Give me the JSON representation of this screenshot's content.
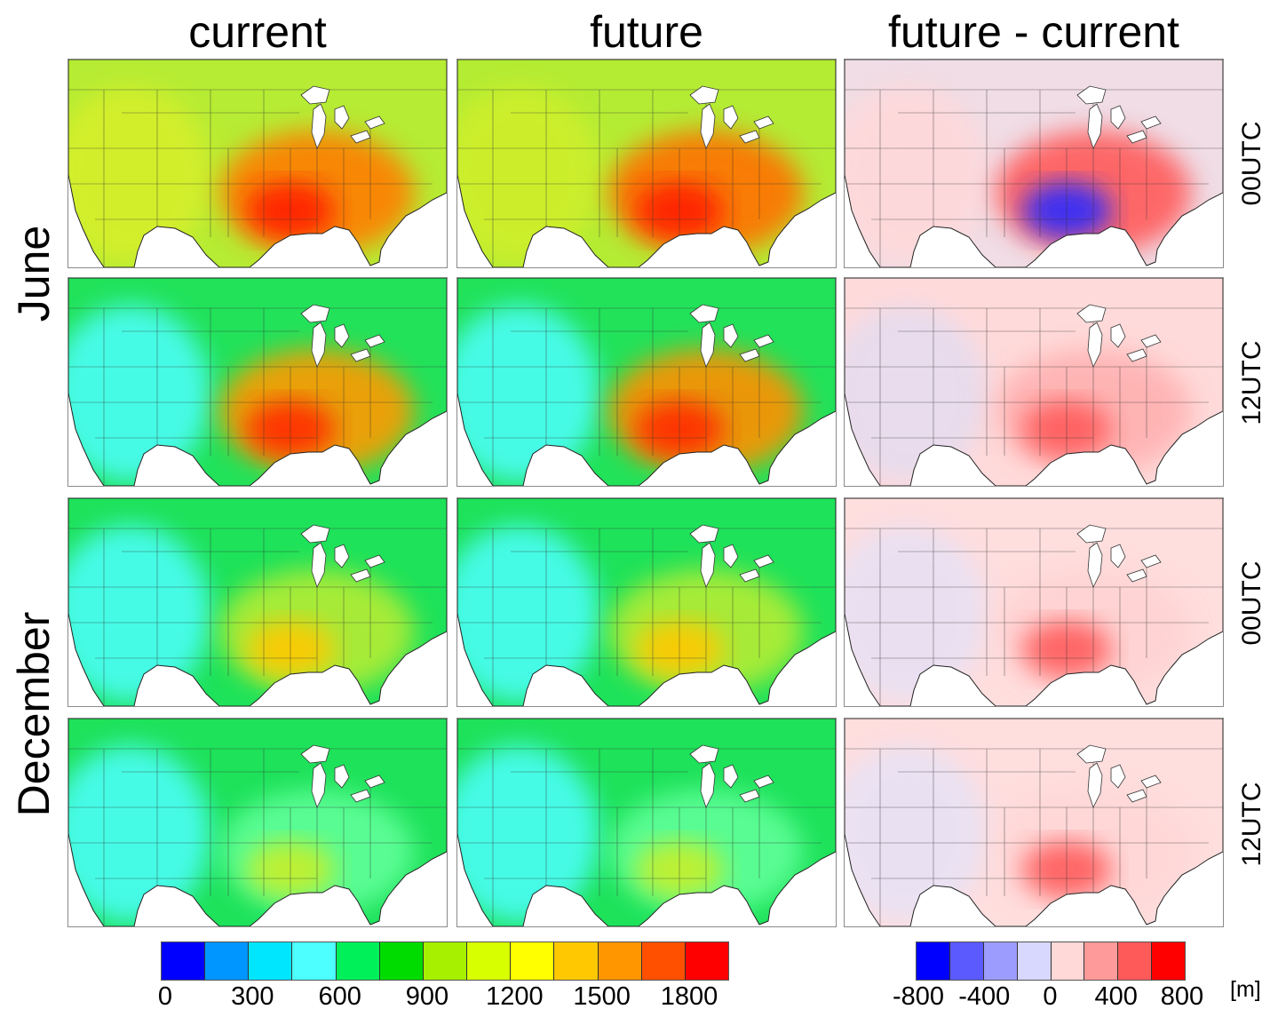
{
  "columns": [
    "current",
    "future",
    "future - current"
  ],
  "months": [
    "June",
    "December"
  ],
  "rows": [
    {
      "month": "June",
      "time": "00UTC"
    },
    {
      "month": "June",
      "time": "12UTC"
    },
    {
      "month": "December",
      "time": "00UTC"
    },
    {
      "month": "December",
      "time": "12UTC"
    }
  ],
  "colorbar_main": {
    "colors": [
      "#0000ff",
      "#0096ff",
      "#00e6ff",
      "#4dffff",
      "#00f05a",
      "#00dc00",
      "#a6f000",
      "#d8ff00",
      "#ffff00",
      "#ffc800",
      "#ff9600",
      "#ff5000",
      "#ff0000"
    ],
    "ticks": [
      "0",
      "300",
      "600",
      "900",
      "1200",
      "1500",
      "1800"
    ]
  },
  "colorbar_diff": {
    "colors": [
      "#0000ff",
      "#5a5aff",
      "#9c9cff",
      "#d8d8ff",
      "#ffd8d8",
      "#ff9a9a",
      "#ff5a5a",
      "#ff0000"
    ],
    "ticks": [
      "-800",
      "-400",
      "0",
      "400",
      "800"
    ],
    "unit": "[m]"
  },
  "panels": [
    {
      "column": "current",
      "month": "June",
      "time": "00UTC",
      "base": "#b6ec34",
      "west": "#d8ef2a",
      "southeast": "#ff7d00",
      "hotspot": "#ff1a00"
    },
    {
      "column": "future",
      "month": "June",
      "time": "00UTC",
      "base": "#b4ec34",
      "west": "#d0ef2a",
      "southeast": "#ff7000",
      "hotspot": "#ff1a00"
    },
    {
      "column": "future - current",
      "month": "June",
      "time": "00UTC",
      "base": "#f0dde6",
      "west": "#ffd8d8",
      "southeast": "#ff5a5a",
      "hotspot": "#2a2aff"
    },
    {
      "column": "current",
      "month": "June",
      "time": "12UTC",
      "base": "#22e25a",
      "west": "#4dffff",
      "southeast": "#ff9a00",
      "hotspot": "#ff2a00"
    },
    {
      "column": "future",
      "month": "June",
      "time": "12UTC",
      "base": "#22e25a",
      "west": "#4dffff",
      "southeast": "#ff9000",
      "hotspot": "#ff2a00"
    },
    {
      "column": "future - current",
      "month": "June",
      "time": "12UTC",
      "base": "#ffdada",
      "west": "#e4dcf0",
      "southeast": "#ffb0b0",
      "hotspot": "#ff5a5a"
    },
    {
      "column": "current",
      "month": "December",
      "time": "00UTC",
      "base": "#1ee25a",
      "west": "#4dffff",
      "southeast": "#b6ec34",
      "hotspot": "#ffc800"
    },
    {
      "column": "future",
      "month": "December",
      "time": "00UTC",
      "base": "#1ee25a",
      "west": "#4dffff",
      "southeast": "#b6ec34",
      "hotspot": "#ffc800"
    },
    {
      "column": "future - current",
      "month": "December",
      "time": "00UTC",
      "base": "#ffdede",
      "west": "#e6e0f4",
      "southeast": "#ffd2d2",
      "hotspot": "#ff5a5a"
    },
    {
      "column": "current",
      "month": "December",
      "time": "12UTC",
      "base": "#1ee25a",
      "west": "#4dffff",
      "southeast": "#60ff9a",
      "hotspot": "#c8ef2a"
    },
    {
      "column": "future",
      "month": "December",
      "time": "12UTC",
      "base": "#1ee25a",
      "west": "#4dffff",
      "southeast": "#60ff9a",
      "hotspot": "#c8ef2a"
    },
    {
      "column": "future - current",
      "month": "December",
      "time": "12UTC",
      "base": "#ffdede",
      "west": "#e6e2f6",
      "southeast": "#ffd6d6",
      "hotspot": "#ff5a5a"
    }
  ]
}
